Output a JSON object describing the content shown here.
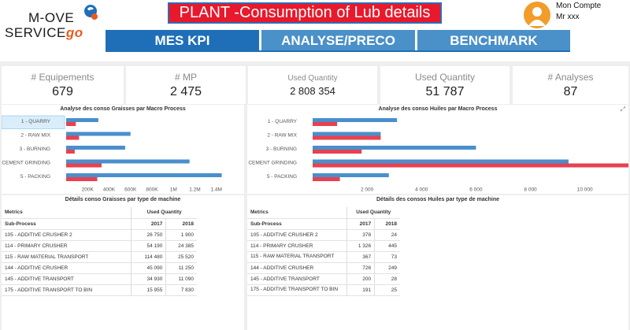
{
  "logo": {
    "line1": "M-OVE",
    "line2": "SERVICE",
    "go": "go"
  },
  "title": "PLANT -Consumption of Lub details",
  "nav": {
    "tab1": "MES KPI",
    "tab2": "ANALYSE/PRECO",
    "tab3": "BENCHMARK"
  },
  "account": {
    "label": "Mon Compte",
    "user": "Mr xxx"
  },
  "kpis": [
    {
      "label": "# Equipements",
      "value": "679"
    },
    {
      "label": "# MP",
      "value": "2 475"
    },
    {
      "label": "Used Quantity",
      "value": "2 808 354"
    },
    {
      "label": "Used Quantity",
      "value": "51 787"
    },
    {
      "label": "# Analyses",
      "value": "87"
    }
  ],
  "colors": {
    "series2017": "#4a8fcc",
    "series2018": "#e8414f",
    "selected": "#d9eefa"
  },
  "chart_data": [
    {
      "type": "bar",
      "title": "Analyse des conso Graisses par Macro Process",
      "categories": [
        "1 - QUARRY",
        "2 - RAW MIX",
        "3 - BURNING",
        "4 - CEMENT GRINDING",
        "5 - PACKING"
      ],
      "series": [
        {
          "values": [
            300000,
            600000,
            550000,
            1150000,
            1450000
          ]
        },
        {
          "values": [
            90000,
            120000,
            80000,
            330000,
            290000
          ]
        }
      ],
      "xtick_labels": [
        "200K",
        "400K",
        "600K",
        "800K",
        "1M",
        "1.2M",
        "1.4M"
      ],
      "xticks": [
        200000,
        400000,
        600000,
        800000,
        1000000,
        1200000,
        1400000
      ],
      "xlim": [
        0,
        1600000
      ],
      "selected_category": "1 - QUARRY"
    },
    {
      "type": "bar",
      "title": "Analyse des conso Huiles par Macro Process",
      "categories": [
        "1 - QUARRY",
        "2 - RAW MIX",
        "3 - BURNING",
        "4 - CEMENT GRINDING",
        "5 - PACKING"
      ],
      "series": [
        {
          "values": [
            3100,
            2500,
            6000,
            9400,
            2800
          ]
        },
        {
          "values": [
            900,
            2500,
            1800,
            11600,
            1000
          ]
        }
      ],
      "xtick_labels": [
        "2 000",
        "4 000",
        "6 000",
        "8 000",
        "10 000"
      ],
      "xticks": [
        2000,
        4000,
        6000,
        8000,
        10000
      ],
      "xlim": [
        0,
        11600
      ]
    }
  ],
  "table_graisses": {
    "title": "Détails conso Graisses par type de machine",
    "metrics_label": "Metrics",
    "measure_label": "Used Quantity",
    "subprocess_label": "Sub-Process",
    "years": [
      "2017",
      "2018"
    ],
    "rows": [
      {
        "name": "105 - ADDITIVE CRUSHER 2",
        "v2017": "26 750",
        "v2018": "1 900"
      },
      {
        "name": "114 - PRIMARY CRUSHER",
        "v2017": "54 190",
        "v2018": "24 385"
      },
      {
        "name": "115 - RAW MATERIAL TRANSPORT",
        "v2017": "114 480",
        "v2018": "25 520"
      },
      {
        "name": "144 - ADDITIVE CRUSHER",
        "v2017": "45 090",
        "v2018": "11 250"
      },
      {
        "name": "145 - ADDITIVE TRANSPORT",
        "v2017": "34 930",
        "v2018": "11 090"
      },
      {
        "name": "175 - ADDITIVE TRANSPORT TO BIN",
        "v2017": "15 955",
        "v2018": "7 830"
      }
    ]
  },
  "table_huiles": {
    "title": "Détails des consos Huiles par type de machine",
    "metrics_label": "Metrics",
    "measure_label": "Used Quantity",
    "subprocess_label": "Sub-Process",
    "years": [
      "2017",
      "2018"
    ],
    "rows": [
      {
        "name": "105 - ADDITIVE CRUSHER 2",
        "v2017": "378",
        "v2018": "24"
      },
      {
        "name": "114 - PRIMARY CRUSHER",
        "v2017": "1 326",
        "v2018": "445"
      },
      {
        "name": "115 - RAW MATERIAL TRANSPORT",
        "v2017": "367",
        "v2018": "73"
      },
      {
        "name": "144 - ADDITIVE CRUSHER",
        "v2017": "726",
        "v2018": "249"
      },
      {
        "name": "145 - ADDITIVE TRANSPORT",
        "v2017": "200",
        "v2018": "28"
      },
      {
        "name": "175 - ADDITIVE TRANSPORT TO BIN",
        "v2017": "191",
        "v2018": "25"
      }
    ]
  }
}
